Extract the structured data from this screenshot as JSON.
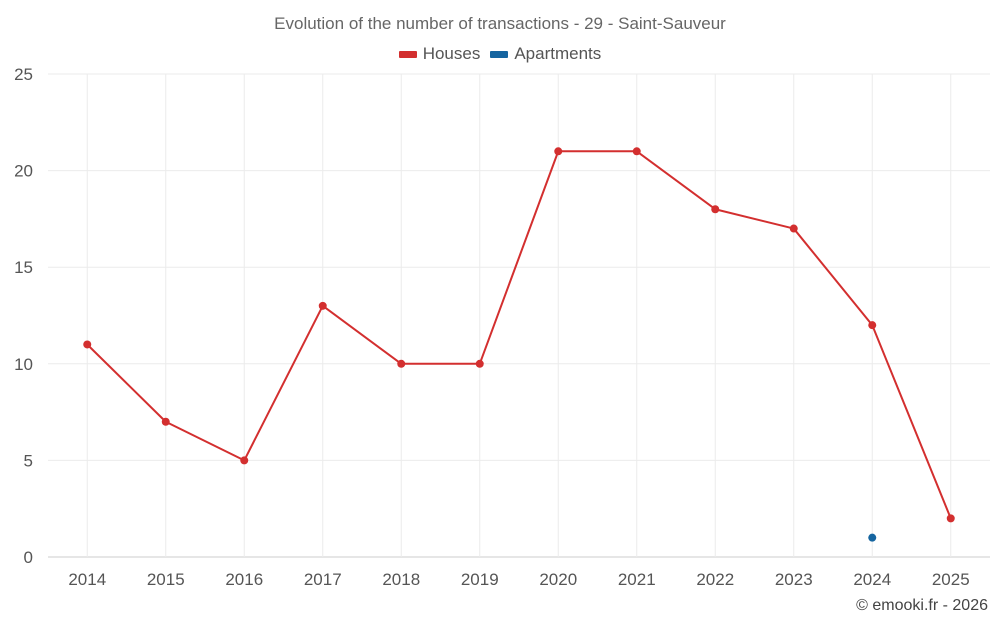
{
  "chart_data": {
    "type": "line",
    "title": "Evolution of the number of transactions - 29 - Saint-Sauveur",
    "categories": [
      "2014",
      "2015",
      "2016",
      "2017",
      "2018",
      "2019",
      "2020",
      "2021",
      "2022",
      "2023",
      "2024",
      "2025"
    ],
    "series": [
      {
        "name": "Houses",
        "color": "#d32f2f",
        "values": [
          11,
          7,
          5,
          13,
          10,
          10,
          21,
          21,
          18,
          17,
          12,
          2
        ]
      },
      {
        "name": "Apartments",
        "color": "#1565a0",
        "values": [
          null,
          null,
          null,
          null,
          null,
          null,
          null,
          null,
          null,
          null,
          1,
          null
        ]
      }
    ],
    "ylim": [
      0,
      25
    ],
    "yticks": [
      0,
      5,
      10,
      15,
      20,
      25
    ],
    "xlabel": "",
    "ylabel": "",
    "legend_position": "top-center",
    "grid": true
  },
  "footer": "© emooki.fr - 2026"
}
